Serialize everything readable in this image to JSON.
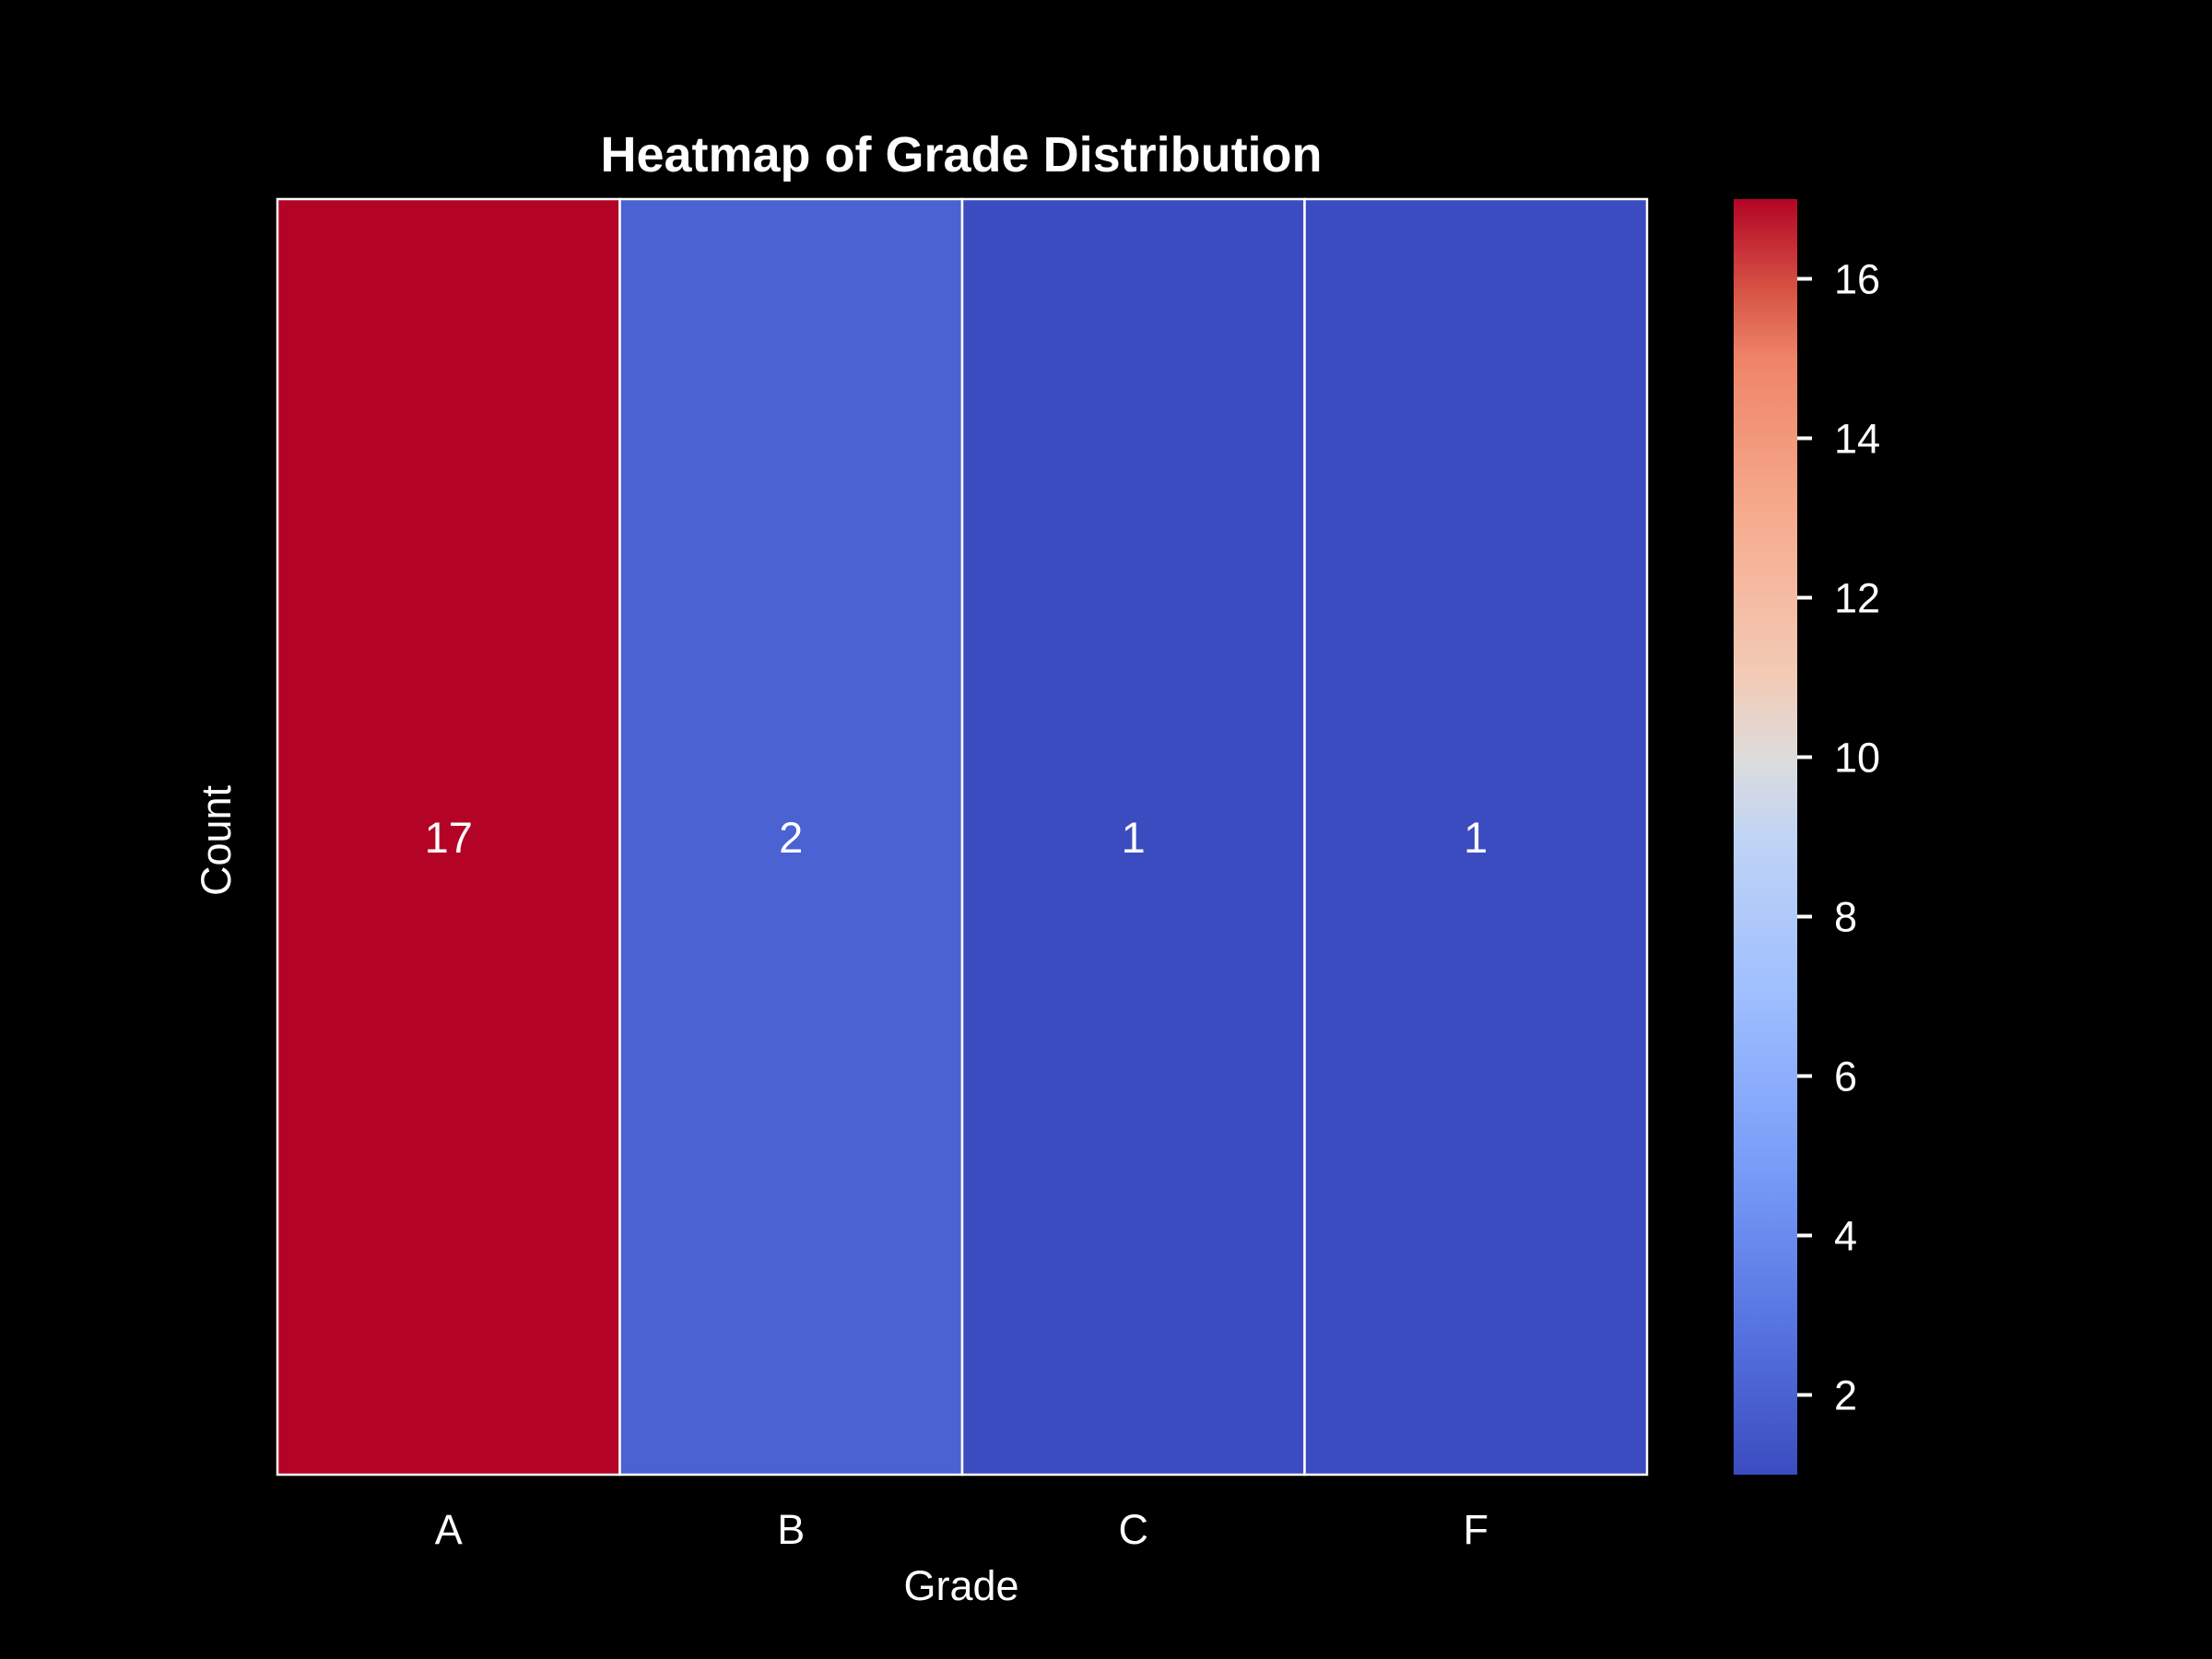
{
  "chart_data": {
    "type": "heatmap",
    "title": "Heatmap of Grade Distribution",
    "xlabel": "Grade",
    "ylabel": "Count",
    "categories": [
      "A",
      "B",
      "C",
      "F"
    ],
    "values": [
      17,
      2,
      1,
      1
    ],
    "colorbar": {
      "range": [
        1,
        17
      ],
      "ticks": [
        2,
        4,
        6,
        8,
        10,
        12,
        14,
        16
      ],
      "colormap": "coolwarm"
    },
    "grid": false,
    "legend": "colorbar-right"
  },
  "colors": {
    "background": "#000000",
    "text": "#ffffff",
    "cell_border": "#ffffff"
  }
}
